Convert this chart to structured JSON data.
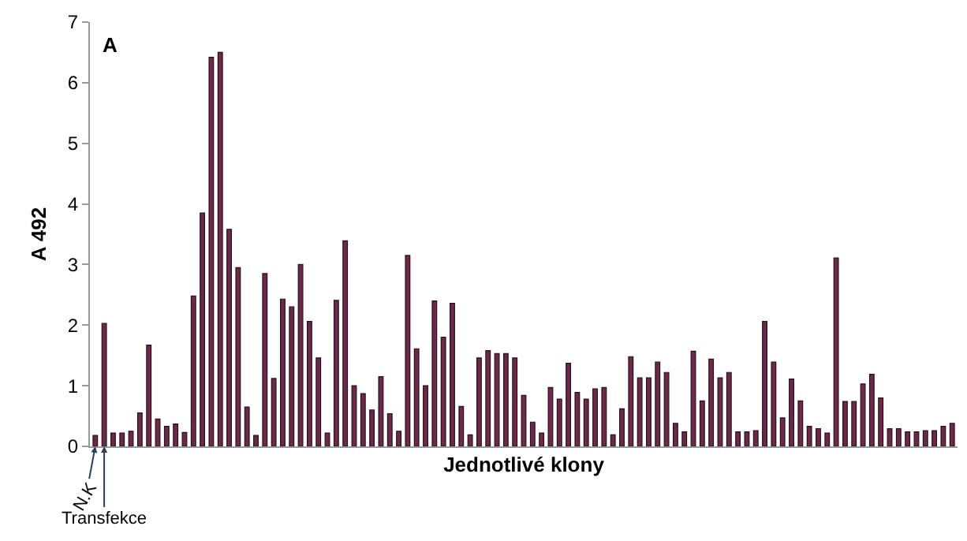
{
  "chart_data": {
    "type": "bar",
    "xlabel": "Jednotlivé klony",
    "ylabel": "A 492",
    "annotations": [
      "A",
      "N.K",
      "Transfekce"
    ],
    "categories": [
      null,
      null,
      null,
      null,
      null,
      null,
      null,
      null,
      null,
      null,
      null,
      null,
      null,
      null,
      null,
      null,
      null,
      null,
      null,
      null,
      null,
      null,
      null,
      null,
      null,
      null,
      null,
      null,
      null,
      null,
      null,
      null,
      null,
      null,
      null,
      null,
      null,
      null,
      null,
      null,
      null,
      null,
      null,
      null,
      null,
      null,
      null,
      null,
      null,
      null,
      null,
      null,
      null,
      null,
      null,
      null,
      null,
      null,
      null,
      null,
      null,
      null,
      null,
      null,
      null,
      null,
      null,
      null,
      null,
      null,
      null,
      null,
      null,
      null,
      null,
      null,
      null,
      null,
      null,
      null,
      null,
      null,
      null,
      null,
      null,
      null,
      null,
      null,
      null,
      null,
      null,
      null,
      null,
      null,
      null,
      null,
      null
    ],
    "values": [
      0.18,
      2.03,
      0.22,
      0.22,
      0.25,
      0.55,
      1.67,
      0.45,
      0.33,
      0.37,
      0.23,
      2.48,
      3.85,
      6.42,
      6.5,
      3.58,
      2.95,
      0.65,
      0.18,
      2.85,
      1.12,
      2.43,
      2.3,
      3.0,
      2.06,
      1.46,
      0.22,
      2.41,
      3.39,
      1.0,
      0.87,
      0.6,
      1.15,
      0.54,
      0.25,
      3.15,
      1.61,
      1.0,
      2.4,
      1.8,
      2.36,
      0.66,
      0.19,
      1.46,
      1.58,
      1.53,
      1.53,
      1.46,
      0.84,
      0.4,
      0.22,
      0.97,
      0.78,
      1.37,
      0.89,
      0.78,
      0.95,
      0.97,
      0.19,
      0.62,
      1.48,
      1.13,
      1.13,
      1.39,
      1.22,
      0.38,
      0.24,
      1.57,
      0.75,
      1.44,
      1.13,
      1.22,
      0.24,
      0.24,
      0.26,
      2.06,
      1.39,
      0.47,
      1.11,
      0.75,
      0.33,
      0.29,
      0.22,
      3.11,
      0.74,
      0.74,
      1.03,
      1.19,
      0.8,
      0.29,
      0.29,
      0.24,
      0.24,
      0.26,
      0.26,
      0.33,
      0.38
    ],
    "color": "#6b2a4a",
    "ylim": [
      0,
      7
    ],
    "yticks": [
      0,
      1,
      2,
      3,
      4,
      5,
      6,
      7
    ]
  }
}
